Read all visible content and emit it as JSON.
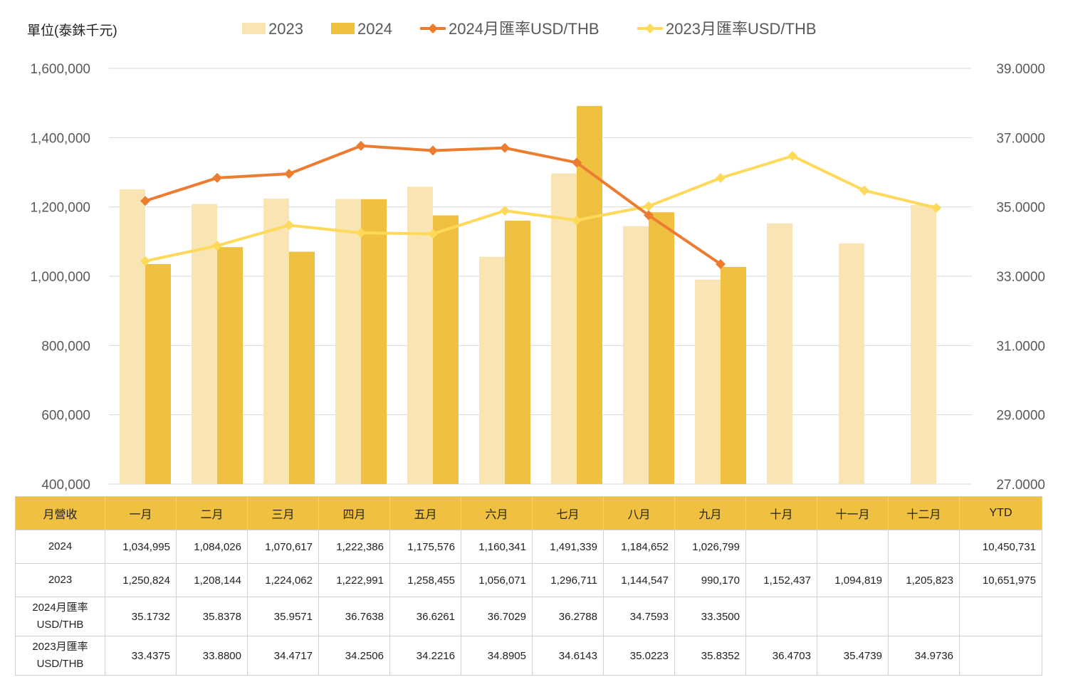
{
  "unit_label": "單位(泰銖千元)",
  "chart_data": {
    "type": "bar",
    "categories": [
      "一月",
      "二月",
      "三月",
      "四月",
      "五月",
      "六月",
      "七月",
      "八月",
      "九月",
      "十月",
      "十一月",
      "十二月"
    ],
    "series": [
      {
        "name": "2023",
        "kind": "bar",
        "axis": "left",
        "color": "#f9e4b4",
        "values": [
          1250824,
          1208144,
          1224062,
          1222991,
          1258455,
          1056071,
          1296711,
          1144547,
          990170,
          1152437,
          1094819,
          1205823
        ]
      },
      {
        "name": "2024",
        "kind": "bar",
        "axis": "left",
        "color": "#f0c040",
        "values": [
          1034995,
          1084026,
          1070617,
          1222386,
          1175576,
          1160341,
          1491339,
          1184652,
          1026799,
          null,
          null,
          null
        ]
      },
      {
        "name": "2024月匯率USD/THB",
        "kind": "line",
        "axis": "right",
        "color": "#ec7c30",
        "values": [
          35.1732,
          35.8378,
          35.9571,
          36.7638,
          36.6261,
          36.7029,
          36.2788,
          34.7593,
          33.35,
          null,
          null,
          null
        ]
      },
      {
        "name": "2023月匯率USD/THB",
        "kind": "line",
        "axis": "right",
        "color": "#ffd95a",
        "values": [
          33.4375,
          33.88,
          34.4717,
          34.2506,
          34.2216,
          34.8905,
          34.6143,
          35.0223,
          35.8352,
          36.4703,
          35.4739,
          34.9736
        ]
      }
    ],
    "y_left": {
      "min": 400000,
      "max": 1600000,
      "ticks": [
        "400,000",
        "600,000",
        "800,000",
        "1,000,000",
        "1,200,000",
        "1,400,000",
        "1,600,000"
      ]
    },
    "y_right": {
      "min": 27,
      "max": 39,
      "ticks": [
        "27.0000",
        "29.0000",
        "31.0000",
        "33.0000",
        "35.0000",
        "37.0000",
        "39.0000"
      ]
    },
    "grid": true,
    "legend_position": "top"
  },
  "table": {
    "header": [
      "月營收",
      "一月",
      "二月",
      "三月",
      "四月",
      "五月",
      "六月",
      "七月",
      "八月",
      "九月",
      "十月",
      "十一月",
      "十二月",
      "YTD"
    ],
    "rows": [
      {
        "label": "2024",
        "cells": [
          "1,034,995",
          "1,084,026",
          "1,070,617",
          "1,222,386",
          "1,175,576",
          "1,160,341",
          "1,491,339",
          "1,184,652",
          "1,026,799",
          "",
          "",
          "",
          "10,450,731"
        ]
      },
      {
        "label": "2023",
        "cells": [
          "1,250,824",
          "1,208,144",
          "1,224,062",
          "1,222,991",
          "1,258,455",
          "1,056,071",
          "1,296,711",
          "1,144,547",
          "990,170",
          "1,152,437",
          "1,094,819",
          "1,205,823",
          "10,651,975"
        ]
      },
      {
        "label": "2024月匯率\nUSD/THB",
        "cells": [
          "35.1732",
          "35.8378",
          "35.9571",
          "36.7638",
          "36.6261",
          "36.7029",
          "36.2788",
          "34.7593",
          "33.3500",
          "",
          "",
          "",
          ""
        ]
      },
      {
        "label": "2023月匯率\nUSD/THB",
        "cells": [
          "33.4375",
          "33.8800",
          "34.4717",
          "34.2506",
          "34.2216",
          "34.8905",
          "34.6143",
          "35.0223",
          "35.8352",
          "36.4703",
          "35.4739",
          "34.9736",
          ""
        ]
      }
    ]
  }
}
